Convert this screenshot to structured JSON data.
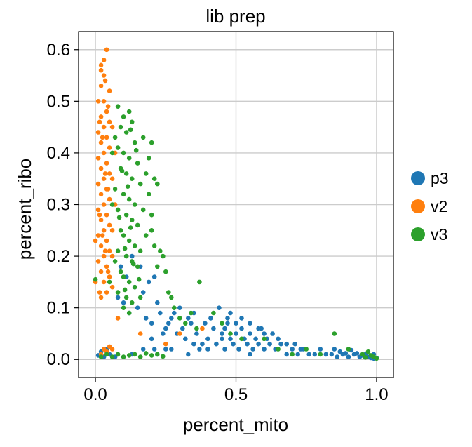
{
  "chart_data": {
    "type": "scatter",
    "title": "lib prep",
    "xlabel": "percent_mito",
    "ylabel": "percent_ribo",
    "xlim": [
      -0.06,
      1.06
    ],
    "ylim": [
      -0.035,
      0.635
    ],
    "xticks": [
      {
        "value": 0.0,
        "label": "0.0"
      },
      {
        "value": 0.5,
        "label": "0.5"
      },
      {
        "value": 1.0,
        "label": "1.0"
      }
    ],
    "yticks": [
      {
        "value": 0.0,
        "label": "0.0"
      },
      {
        "value": 0.1,
        "label": "0.1"
      },
      {
        "value": 0.2,
        "label": "0.2"
      },
      {
        "value": 0.3,
        "label": "0.3"
      },
      {
        "value": 0.4,
        "label": "0.4"
      },
      {
        "value": 0.5,
        "label": "0.5"
      },
      {
        "value": 0.6,
        "label": "0.6"
      }
    ],
    "grid": true,
    "legend_position": "right",
    "series": [
      {
        "name": "p3",
        "color": "#1f77b4",
        "points": [
          [
            0.1,
            0.11
          ],
          [
            0.12,
            0.09
          ],
          [
            0.15,
            0.1
          ],
          [
            0.18,
            0.08
          ],
          [
            0.2,
            0.07
          ],
          [
            0.22,
            0.11
          ],
          [
            0.08,
            0.12
          ],
          [
            0.14,
            0.14
          ],
          [
            0.17,
            0.13
          ],
          [
            0.11,
            0.16
          ],
          [
            0.13,
            0.2
          ],
          [
            0.16,
            0.18
          ],
          [
            0.19,
            0.15
          ],
          [
            0.21,
            0.16
          ],
          [
            0.09,
            0.18
          ],
          [
            0.23,
            0.09
          ],
          [
            0.25,
            0.06
          ],
          [
            0.27,
            0.08
          ],
          [
            0.29,
            0.05
          ],
          [
            0.31,
            0.06
          ],
          [
            0.32,
            0.04
          ],
          [
            0.34,
            0.07
          ],
          [
            0.36,
            0.05
          ],
          [
            0.38,
            0.03
          ],
          [
            0.4,
            0.04
          ],
          [
            0.42,
            0.06
          ],
          [
            0.43,
            0.03
          ],
          [
            0.45,
            0.05
          ],
          [
            0.46,
            0.02
          ],
          [
            0.47,
            0.07
          ],
          [
            0.48,
            0.04
          ],
          [
            0.49,
            0.03
          ],
          [
            0.5,
            0.05
          ],
          [
            0.51,
            0.02
          ],
          [
            0.52,
            0.06
          ],
          [
            0.53,
            0.04
          ],
          [
            0.54,
            0.03
          ],
          [
            0.55,
            0.05
          ],
          [
            0.56,
            0.02
          ],
          [
            0.57,
            0.04
          ],
          [
            0.58,
            0.03
          ],
          [
            0.6,
            0.02
          ],
          [
            0.62,
            0.03
          ],
          [
            0.64,
            0.02
          ],
          [
            0.66,
            0.03
          ],
          [
            0.68,
            0.01
          ],
          [
            0.7,
            0.02
          ],
          [
            0.72,
            0.01
          ],
          [
            0.74,
            0.02
          ],
          [
            0.76,
            0.01
          ],
          [
            0.78,
            0.01
          ],
          [
            0.8,
            0.02
          ],
          [
            0.82,
            0.01
          ],
          [
            0.84,
            0.01
          ],
          [
            0.86,
            0.005
          ],
          [
            0.88,
            0.01
          ],
          [
            0.9,
            0.005
          ],
          [
            0.92,
            0.01
          ],
          [
            0.94,
            0.005
          ],
          [
            0.96,
            0.01
          ],
          [
            0.97,
            0.005
          ],
          [
            0.98,
            0.003
          ],
          [
            0.99,
            0.002
          ],
          [
            1.0,
            0.003
          ],
          [
            0.95,
            0.008
          ],
          [
            0.93,
            0.012
          ],
          [
            0.44,
            0.1
          ],
          [
            0.41,
            0.08
          ],
          [
            0.39,
            0.07
          ],
          [
            0.35,
            0.09
          ],
          [
            0.33,
            0.08
          ],
          [
            0.3,
            0.1
          ],
          [
            0.28,
            0.09
          ],
          [
            0.26,
            0.07
          ],
          [
            0.24,
            0.05
          ],
          [
            0.55,
            0.07
          ],
          [
            0.59,
            0.06
          ],
          [
            0.61,
            0.04
          ],
          [
            0.63,
            0.05
          ],
          [
            0.46,
            0.06
          ],
          [
            0.47,
            0.08
          ],
          [
            0.48,
            0.09
          ],
          [
            0.5,
            0.07
          ],
          [
            0.52,
            0.08
          ],
          [
            0.37,
            0.02
          ],
          [
            0.33,
            0.01
          ],
          [
            0.27,
            0.02
          ],
          [
            0.22,
            0.01
          ],
          [
            0.17,
            0.02
          ],
          [
            0.13,
            0.01
          ],
          [
            0.07,
            0.005
          ],
          [
            0.05,
            0.01
          ],
          [
            0.03,
            0.005
          ],
          [
            0.04,
            0.02
          ],
          [
            0.02,
            0.015
          ],
          [
            0.01,
            0.008
          ],
          [
            0.2,
            0.04
          ],
          [
            0.21,
            0.02
          ],
          [
            0.25,
            0.02
          ],
          [
            0.35,
            0.03
          ],
          [
            0.4,
            0.02
          ],
          [
            0.45,
            0.04
          ],
          [
            0.55,
            0.01
          ],
          [
            0.58,
            0.06
          ],
          [
            0.6,
            0.05
          ],
          [
            0.65,
            0.04
          ],
          [
            0.68,
            0.03
          ],
          [
            0.71,
            0.03
          ],
          [
            0.73,
            0.02
          ],
          [
            0.85,
            0.02
          ],
          [
            0.87,
            0.015
          ],
          [
            0.89,
            0.012
          ],
          [
            0.91,
            0.018
          ],
          [
            0.99,
            0.01
          ]
        ]
      },
      {
        "name": "v2",
        "color": "#ff7f0e",
        "points": [
          [
            0.02,
            0.56
          ],
          [
            0.03,
            0.55
          ],
          [
            0.04,
            0.6
          ],
          [
            0.03,
            0.58
          ],
          [
            0.02,
            0.53
          ],
          [
            0.05,
            0.52
          ],
          [
            0.01,
            0.5
          ],
          [
            0.03,
            0.5
          ],
          [
            0.04,
            0.48
          ],
          [
            0.02,
            0.47
          ],
          [
            0.05,
            0.46
          ],
          [
            0.03,
            0.45
          ],
          [
            0.01,
            0.44
          ],
          [
            0.04,
            0.43
          ],
          [
            0.02,
            0.42
          ],
          [
            0.05,
            0.41
          ],
          [
            0.03,
            0.4
          ],
          [
            0.01,
            0.39
          ],
          [
            0.04,
            0.38
          ],
          [
            0.02,
            0.37
          ],
          [
            0.05,
            0.36
          ],
          [
            0.03,
            0.35
          ],
          [
            0.01,
            0.34
          ],
          [
            0.04,
            0.33
          ],
          [
            0.02,
            0.32
          ],
          [
            0.05,
            0.31
          ],
          [
            0.03,
            0.3
          ],
          [
            0.01,
            0.29
          ],
          [
            0.04,
            0.28
          ],
          [
            0.02,
            0.27
          ],
          [
            0.05,
            0.26
          ],
          [
            0.03,
            0.25
          ],
          [
            0.01,
            0.24
          ],
          [
            0.04,
            0.23
          ],
          [
            0.02,
            0.22
          ],
          [
            0.05,
            0.21
          ],
          [
            0.03,
            0.2
          ],
          [
            0.01,
            0.19
          ],
          [
            0.04,
            0.18
          ],
          [
            0.02,
            0.17
          ],
          [
            0.05,
            0.16
          ],
          [
            0.03,
            0.15
          ],
          [
            0.06,
            0.14
          ],
          [
            0.04,
            0.13
          ],
          [
            0.02,
            0.12
          ],
          [
            0.06,
            0.45
          ],
          [
            0.06,
            0.35
          ],
          [
            0.06,
            0.25
          ],
          [
            0.06,
            0.2
          ],
          [
            0.07,
            0.3
          ],
          [
            0.07,
            0.4
          ],
          [
            0.0,
            0.23
          ],
          [
            0.0,
            0.15
          ],
          [
            0.02,
            0.57
          ],
          [
            0.035,
            0.54
          ],
          [
            0.045,
            0.49
          ],
          [
            0.015,
            0.46
          ],
          [
            0.025,
            0.43
          ],
          [
            0.035,
            0.36
          ],
          [
            0.045,
            0.33
          ],
          [
            0.015,
            0.28
          ],
          [
            0.025,
            0.24
          ],
          [
            0.035,
            0.21
          ],
          [
            0.045,
            0.17
          ],
          [
            0.015,
            0.13
          ],
          [
            0.03,
            0.02
          ],
          [
            0.04,
            0.015
          ],
          [
            0.05,
            0.025
          ],
          [
            0.06,
            0.02
          ],
          [
            0.02,
            0.01
          ],
          [
            0.38,
            0.06
          ],
          [
            0.25,
            0.03
          ],
          [
            0.3,
            0.05
          ],
          [
            0.16,
            0.05
          ],
          [
            0.08,
            0.08
          ]
        ]
      },
      {
        "name": "v3",
        "color": "#2ca02c",
        "points": [
          [
            0.08,
            0.49
          ],
          [
            0.1,
            0.47
          ],
          [
            0.12,
            0.48
          ],
          [
            0.09,
            0.45
          ],
          [
            0.11,
            0.44
          ],
          [
            0.13,
            0.46
          ],
          [
            0.07,
            0.43
          ],
          [
            0.14,
            0.42
          ],
          [
            0.08,
            0.41
          ],
          [
            0.1,
            0.4
          ],
          [
            0.12,
            0.39
          ],
          [
            0.15,
            0.38
          ],
          [
            0.09,
            0.37
          ],
          [
            0.11,
            0.36
          ],
          [
            0.13,
            0.35
          ],
          [
            0.16,
            0.34
          ],
          [
            0.07,
            0.33
          ],
          [
            0.1,
            0.32
          ],
          [
            0.12,
            0.31
          ],
          [
            0.14,
            0.3
          ],
          [
            0.08,
            0.29
          ],
          [
            0.11,
            0.28
          ],
          [
            0.13,
            0.27
          ],
          [
            0.15,
            0.26
          ],
          [
            0.09,
            0.25
          ],
          [
            0.1,
            0.24
          ],
          [
            0.12,
            0.23
          ],
          [
            0.14,
            0.22
          ],
          [
            0.08,
            0.21
          ],
          [
            0.11,
            0.2
          ],
          [
            0.13,
            0.19
          ],
          [
            0.15,
            0.18
          ],
          [
            0.09,
            0.17
          ],
          [
            0.1,
            0.16
          ],
          [
            0.12,
            0.15
          ],
          [
            0.14,
            0.14
          ],
          [
            0.08,
            0.13
          ],
          [
            0.11,
            0.12
          ],
          [
            0.13,
            0.11
          ],
          [
            0.16,
            0.12
          ],
          [
            0.17,
            0.43
          ],
          [
            0.18,
            0.36
          ],
          [
            0.19,
            0.32
          ],
          [
            0.2,
            0.28
          ],
          [
            0.21,
            0.35
          ],
          [
            0.22,
            0.34
          ],
          [
            0.2,
            0.25
          ],
          [
            0.21,
            0.22
          ],
          [
            0.23,
            0.21
          ],
          [
            0.22,
            0.18
          ],
          [
            0.24,
            0.2
          ],
          [
            0.25,
            0.17
          ],
          [
            0.26,
            0.13
          ],
          [
            0.27,
            0.12
          ],
          [
            0.28,
            0.1
          ],
          [
            0.3,
            0.08
          ],
          [
            0.32,
            0.07
          ],
          [
            0.34,
            0.09
          ],
          [
            0.36,
            0.06
          ],
          [
            0.37,
            0.15
          ],
          [
            0.42,
            0.09
          ],
          [
            0.45,
            0.07
          ],
          [
            0.48,
            0.05
          ],
          [
            0.52,
            0.04
          ],
          [
            0.6,
            0.04
          ],
          [
            0.65,
            0.02
          ],
          [
            0.7,
            0.01
          ],
          [
            0.75,
            0.02
          ],
          [
            0.8,
            0.01
          ],
          [
            0.85,
            0.05
          ],
          [
            0.9,
            0.02
          ],
          [
            0.95,
            0.01
          ],
          [
            0.97,
            0.015
          ],
          [
            0.98,
            0.008
          ],
          [
            0.99,
            0.005
          ],
          [
            1.0,
            0.002
          ],
          [
            0.96,
            0.004
          ],
          [
            0.02,
            0.005
          ],
          [
            0.04,
            0.01
          ],
          [
            0.06,
            0.005
          ],
          [
            0.08,
            0.01
          ],
          [
            0.1,
            0.005
          ],
          [
            0.12,
            0.008
          ],
          [
            0.14,
            0.01
          ],
          [
            0.16,
            0.005
          ],
          [
            0.18,
            0.012
          ],
          [
            0.2,
            0.008
          ],
          [
            0.22,
            0.01
          ],
          [
            0.24,
            0.006
          ],
          [
            0.0,
            0.155
          ],
          [
            0.19,
            0.39
          ],
          [
            0.2,
            0.42
          ],
          [
            0.17,
            0.29
          ],
          [
            0.18,
            0.24
          ],
          [
            0.16,
            0.21
          ],
          [
            0.06,
            0.4
          ],
          [
            0.06,
            0.3
          ],
          [
            0.07,
            0.19
          ],
          [
            0.05,
            0.15
          ],
          [
            0.1,
            0.1
          ],
          [
            0.12,
            0.09
          ],
          [
            0.115,
            0.335
          ],
          [
            0.095,
            0.365
          ],
          [
            0.125,
            0.255
          ],
          [
            0.105,
            0.215
          ],
          [
            0.135,
            0.185
          ],
          [
            0.145,
            0.405
          ],
          [
            0.085,
            0.275
          ],
          [
            0.155,
            0.155
          ],
          [
            0.105,
            0.135
          ],
          [
            0.125,
            0.445
          ]
        ]
      }
    ]
  },
  "legend": [
    {
      "label": "p3",
      "color": "#1f77b4"
    },
    {
      "label": "v2",
      "color": "#ff7f0e"
    },
    {
      "label": "v3",
      "color": "#2ca02c"
    }
  ]
}
